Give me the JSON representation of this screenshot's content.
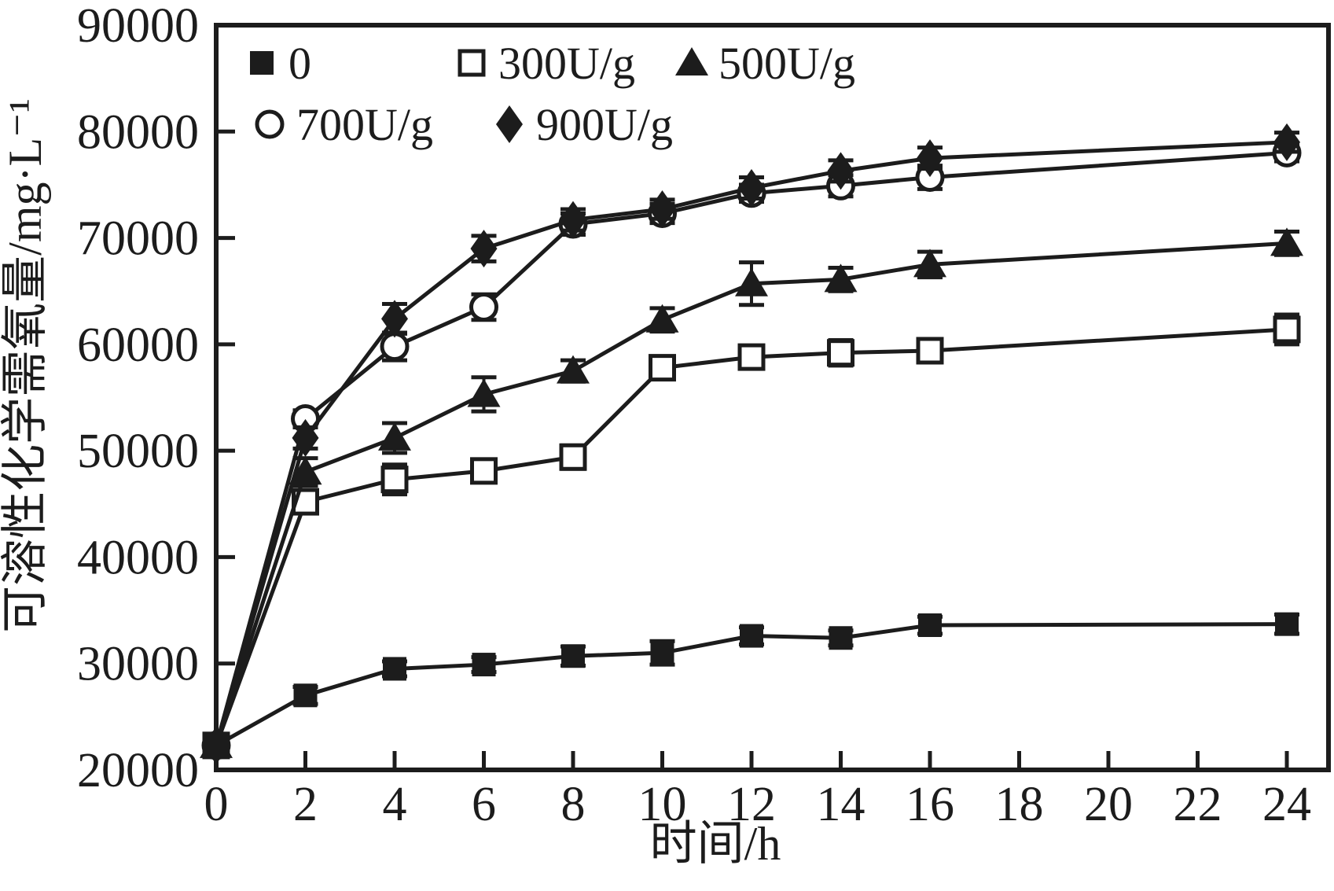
{
  "figure": {
    "background_color": "#ffffff",
    "ink_color": "#1c1c1c"
  },
  "chart_data": {
    "type": "line",
    "title": "",
    "xlabel": "时间/h",
    "ylabel": "可溶性化学需氧量/mg·L⁻¹",
    "xlim": [
      0,
      24.9
    ],
    "ylim": [
      20000,
      90000
    ],
    "x_ticks": [
      0,
      2,
      4,
      6,
      8,
      10,
      12,
      14,
      16,
      18,
      20,
      22,
      24
    ],
    "y_ticks": [
      20000,
      30000,
      40000,
      50000,
      60000,
      70000,
      80000,
      90000
    ],
    "grid": false,
    "legend_position": "top-left-inside",
    "x": [
      0,
      2,
      4,
      6,
      8,
      10,
      12,
      14,
      16,
      24
    ],
    "series": [
      {
        "name": "0",
        "marker": "filled-square",
        "values": [
          22300,
          27000,
          29500,
          29900,
          30700,
          31000,
          32600,
          32400,
          33600,
          33700
        ],
        "errors": [
          400,
          800,
          700,
          700,
          900,
          1100,
          800,
          700,
          800,
          900
        ]
      },
      {
        "name": "300U/g",
        "marker": "open-square",
        "values": [
          22300,
          45200,
          47300,
          48100,
          49400,
          57800,
          58800,
          59200,
          59400,
          61400
        ],
        "errors": [
          400,
          1000,
          1400,
          900,
          1100,
          1000,
          1000,
          1200,
          1100,
          1400
        ]
      },
      {
        "name": "500U/g",
        "marker": "filled-triangle",
        "values": [
          22300,
          48000,
          51200,
          55300,
          57500,
          62300,
          65700,
          66100,
          67500,
          69500
        ],
        "errors": [
          400,
          1300,
          1400,
          1600,
          1000,
          1100,
          2000,
          1100,
          1200,
          1100
        ]
      },
      {
        "name": "700U/g",
        "marker": "open-circle",
        "values": [
          22300,
          53000,
          59800,
          63500,
          71300,
          72300,
          74200,
          74900,
          75700,
          78000
        ],
        "errors": [
          400,
          800,
          1300,
          1200,
          1000,
          900,
          800,
          1000,
          1100,
          800
        ]
      },
      {
        "name": "900U/g",
        "marker": "filled-diamond",
        "values": [
          22300,
          51200,
          62400,
          69000,
          71700,
          72700,
          74700,
          76300,
          77500,
          79000
        ],
        "errors": [
          400,
          1000,
          1400,
          1200,
          1000,
          900,
          1000,
          1000,
          1000,
          900
        ]
      }
    ]
  }
}
